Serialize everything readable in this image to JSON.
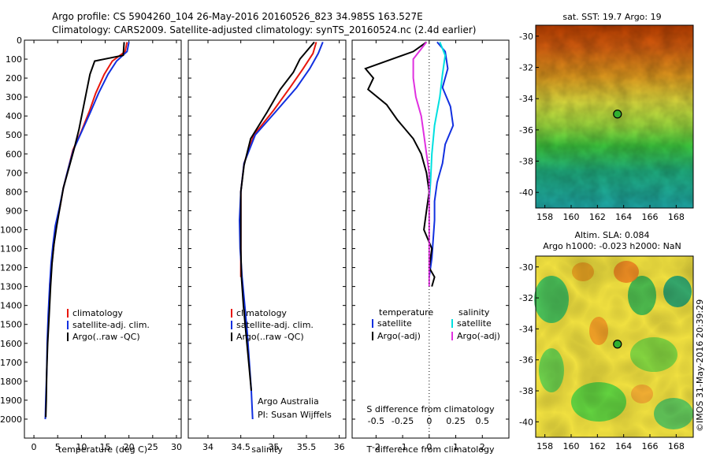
{
  "header": {
    "line1": "Argo profile: CS 5904260_104 26-May-2016 20160526_823 34.985S 163.527E",
    "line2": "Climatology: CARS2009. Satellite-adjusted climatology: synTS_20160524.nc (2.4d earlier)"
  },
  "side_stamp": "©IMOS 31-May-2016 20:39:29",
  "colors": {
    "climatology": "#e8160c",
    "satellite": "#1230e0",
    "argo": "#000000",
    "sal_satellite": "#00e0e0",
    "sal_argo": "#e030e0"
  },
  "chart_data": [
    {
      "id": "temperature",
      "type": "line",
      "xlabel": "temperature (deg C)",
      "ylabel": "",
      "xlim": [
        -2,
        31
      ],
      "ylim": [
        0,
        2100
      ],
      "y_inverted": true,
      "xticks": [
        0,
        5,
        10,
        15,
        20,
        25,
        30
      ],
      "yticks": [
        0,
        100,
        200,
        300,
        400,
        500,
        600,
        700,
        800,
        900,
        1000,
        1100,
        1200,
        1300,
        1400,
        1500,
        1600,
        1700,
        1800,
        1900,
        2000
      ],
      "legend": [
        "climatology",
        "satellite-adj. clim.",
        "Argo(..raw -QC)"
      ],
      "series": [
        {
          "name": "climatology",
          "color": "#e8160c",
          "x": [
            19.6,
            19.2,
            16.5,
            14.8,
            13.0,
            11.6,
            10.0,
            8.2,
            7.2,
            6.2,
            5.5,
            4.6,
            4.2,
            3.9,
            3.6,
            3.3
          ],
          "y": [
            10,
            60,
            110,
            180,
            280,
            380,
            480,
            580,
            680,
            780,
            880,
            980,
            1080,
            1150,
            1220,
            1300
          ]
        },
        {
          "name": "satellite-adj. clim.",
          "color": "#1230e0",
          "x": [
            20.0,
            19.6,
            17.4,
            15.6,
            13.6,
            11.9,
            10.1,
            8.3,
            7.2,
            6.2,
            5.4,
            4.5,
            4.0,
            3.6,
            3.3,
            3.0,
            2.8,
            2.7,
            2.5,
            2.4
          ],
          "y": [
            10,
            60,
            110,
            180,
            280,
            380,
            480,
            580,
            680,
            780,
            880,
            980,
            1080,
            1180,
            1300,
            1450,
            1600,
            1750,
            1900,
            2000
          ]
        },
        {
          "name": "Argo(..raw -QC)",
          "color": "#000000",
          "x": [
            19.0,
            18.8,
            12.8,
            11.8,
            11.0,
            10.2,
            9.5,
            8.4,
            7.3,
            6.2,
            5.5,
            4.8,
            4.2,
            3.8,
            3.5,
            3.2,
            2.9,
            2.7,
            2.6,
            2.5
          ],
          "y": [
            10,
            80,
            110,
            180,
            280,
            380,
            470,
            580,
            680,
            780,
            880,
            980,
            1080,
            1180,
            1300,
            1450,
            1600,
            1750,
            1900,
            1990
          ]
        }
      ]
    },
    {
      "id": "salinity",
      "type": "line",
      "xlabel": "salinity",
      "xlim": [
        33.7,
        36.1
      ],
      "ylim": [
        0,
        2100
      ],
      "y_inverted": true,
      "xticks": [
        34,
        34.5,
        35,
        35.5,
        36
      ],
      "legend": [
        "climatology",
        "satellite-adj. clim.",
        "Argo(..raw -QC)"
      ],
      "annotation": [
        "Argo Australia",
        "PI: Susan Wijffels"
      ],
      "series": [
        {
          "name": "climatology",
          "color": "#e8160c",
          "x": [
            35.65,
            35.6,
            35.45,
            35.25,
            35.0,
            34.7,
            34.55,
            34.5,
            34.5,
            34.5,
            34.5
          ],
          "y": [
            10,
            70,
            150,
            250,
            370,
            500,
            650,
            800,
            950,
            1100,
            1250
          ]
        },
        {
          "name": "satellite-adj. clim.",
          "color": "#1230e0",
          "x": [
            35.75,
            35.68,
            35.55,
            35.35,
            35.05,
            34.72,
            34.55,
            34.5,
            34.48,
            34.49,
            34.52,
            34.56,
            34.6,
            34.63,
            34.66,
            34.68
          ],
          "y": [
            10,
            70,
            150,
            250,
            370,
            500,
            650,
            800,
            950,
            1100,
            1250,
            1400,
            1550,
            1700,
            1850,
            2000
          ]
        },
        {
          "name": "Argo(..raw -QC)",
          "color": "#000000",
          "x": [
            35.62,
            35.4,
            35.3,
            35.1,
            34.9,
            34.65,
            34.55,
            34.5,
            34.5,
            34.5,
            34.51,
            34.54,
            34.58,
            34.62,
            34.66
          ],
          "y": [
            10,
            100,
            170,
            260,
            380,
            520,
            660,
            800,
            950,
            1100,
            1250,
            1400,
            1550,
            1700,
            1850
          ]
        }
      ]
    },
    {
      "id": "difference",
      "type": "line",
      "xlabel": "T difference from climatology",
      "xlabel_top": "S difference from climatology",
      "xlim": [
        -2.9,
        3.0
      ],
      "ylim": [
        0,
        2100
      ],
      "y_inverted": true,
      "xticks": [
        -2,
        -1,
        0,
        1,
        2
      ],
      "xticks_top": [
        "-0.5",
        "-0.25",
        "0",
        "0.25",
        "0.5"
      ],
      "xticks_top_pos": [
        -2,
        -1,
        0,
        1,
        2
      ],
      "legend_temperature": [
        "temperature",
        "satellite",
        "Argo(-adj)"
      ],
      "legend_salinity": [
        "salinity",
        "satellite",
        "Argo(-adj)"
      ],
      "series": [
        {
          "name": "temperature satellite",
          "color": "#1230e0",
          "x": [
            0.3,
            0.6,
            0.7,
            0.5,
            0.8,
            0.9,
            0.6,
            0.5,
            0.3,
            0.2,
            0.2,
            0.15,
            0.1,
            0.0
          ],
          "y": [
            10,
            60,
            150,
            250,
            350,
            450,
            550,
            650,
            750,
            850,
            950,
            1050,
            1150,
            1250
          ]
        },
        {
          "name": "temperature Argo(-adj)",
          "color": "#000000",
          "x": [
            -0.1,
            -0.6,
            -2.4,
            -2.1,
            -2.3,
            -1.6,
            -1.2,
            -0.6,
            -0.3,
            -0.1,
            0.0,
            -0.1,
            -0.2,
            0.1,
            0.0,
            0.2,
            0.1
          ],
          "y": [
            10,
            60,
            150,
            200,
            260,
            340,
            420,
            520,
            600,
            700,
            800,
            900,
            1000,
            1100,
            1200,
            1250,
            1300
          ]
        },
        {
          "name": "salinity satellite",
          "color": "#00e0e0",
          "x": [
            0.4,
            0.6,
            0.5,
            0.4,
            0.2,
            0.1,
            0.05,
            0.0
          ],
          "y": [
            10,
            80,
            180,
            300,
            450,
            600,
            750,
            850
          ]
        },
        {
          "name": "salinity Argo(-adj)",
          "color": "#e030e0",
          "x": [
            -0.1,
            -0.6,
            -0.6,
            -0.5,
            -0.3,
            -0.2,
            -0.1,
            0.0,
            0.0,
            0.0
          ],
          "y": [
            10,
            100,
            200,
            300,
            400,
            500,
            600,
            700,
            850,
            1300
          ]
        }
      ]
    },
    {
      "id": "sst_map",
      "type": "heatmap",
      "title": "sat. SST: 19.7 Argo: 19",
      "xlim": [
        157.3,
        169.3
      ],
      "ylim": [
        -41,
        -29.3
      ],
      "xticks": [
        158,
        160,
        162,
        164,
        166,
        168
      ],
      "yticks": [
        -30,
        -32,
        -34,
        -36,
        -38,
        -40
      ],
      "marker": {
        "lon": 163.527,
        "lat": -34.985
      }
    },
    {
      "id": "sla_map",
      "type": "heatmap",
      "title": "Altim. SLA: 0.084",
      "subtitle": "Argo h1000: -0.023 h2000: NaN",
      "xlim": [
        157.3,
        169.3
      ],
      "ylim": [
        -41,
        -29.3
      ],
      "xticks": [
        158,
        160,
        162,
        164,
        166,
        168
      ],
      "yticks": [
        -30,
        -32,
        -34,
        -36,
        -38,
        -40
      ],
      "marker": {
        "lon": 163.527,
        "lat": -34.985
      }
    }
  ]
}
